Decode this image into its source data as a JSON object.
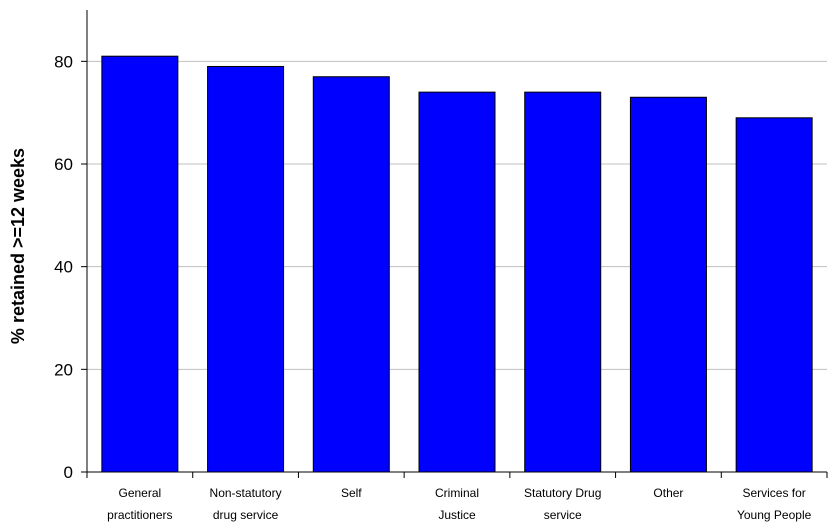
{
  "chart_data": {
    "type": "bar",
    "title": "",
    "xlabel": "",
    "ylabel": "% retained >=12 weeks",
    "categories": [
      [
        "General",
        "practitioners"
      ],
      [
        "Non-statutory",
        "drug service"
      ],
      [
        "Self"
      ],
      [
        "Criminal",
        "Justice"
      ],
      [
        "Statutory Drug",
        "service"
      ],
      [
        "Other"
      ],
      [
        "Services for",
        "Young People"
      ]
    ],
    "values": [
      81,
      79,
      77,
      74,
      74,
      73,
      69
    ],
    "ylim": [
      0,
      90
    ],
    "yticks": [
      0,
      20,
      40,
      60,
      80
    ],
    "grid": true,
    "legend": "none",
    "colors": {
      "bar_fill": "#0000ff",
      "bar_stroke": "#000000",
      "grid": "#c0c0c0",
      "axis": "#000000"
    }
  }
}
